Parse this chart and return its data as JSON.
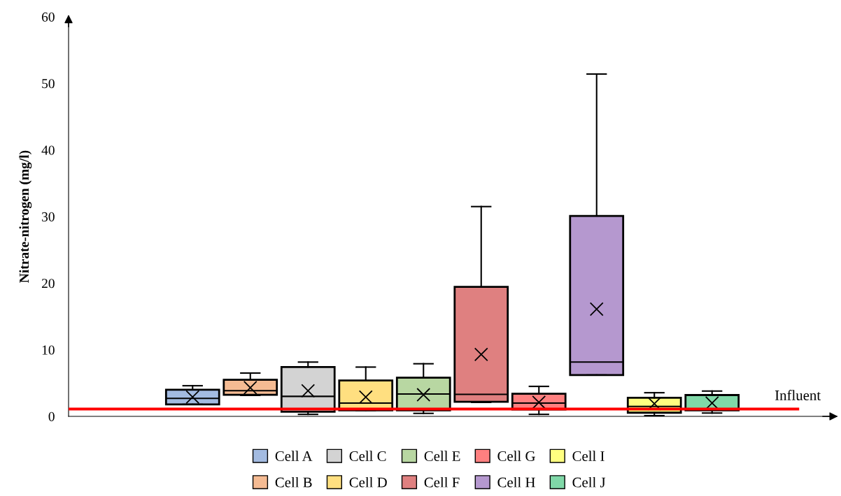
{
  "chart_data": {
    "type": "box",
    "ylabel": "Nitrate-nitrogen (mg/l)",
    "categories": [
      null
    ],
    "ylim": [
      0,
      60
    ],
    "yticks": [
      0,
      10,
      20,
      30,
      40,
      50,
      60
    ],
    "grid": false,
    "legend": "bottom",
    "tick_labels": "y",
    "ref_lines": [
      {
        "axis": "y",
        "value": 1.1,
        "label": "Influent",
        "color": "#ff0000",
        "line_style": "solid"
      }
    ],
    "series": [
      {
        "name": "Cell A",
        "color": "#a3bbe1",
        "boxes": [
          {
            "low": 1.8,
            "q1": 1.8,
            "median": 2.7,
            "q3": 4.0,
            "high": 4.6,
            "mean": 2.9
          }
        ]
      },
      {
        "name": "Cell B",
        "color": "#f5bb93",
        "boxes": [
          {
            "low": 3.15,
            "q1": 3.25,
            "median": 3.85,
            "q3": 5.5,
            "high": 6.5,
            "mean": 4.3
          }
        ]
      },
      {
        "name": "Cell C",
        "color": "#d3d3d3",
        "boxes": [
          {
            "low": 0.3,
            "q1": 0.7,
            "median": 3.0,
            "q3": 7.4,
            "high": 8.15,
            "mean": 3.85
          }
        ]
      },
      {
        "name": "Cell D",
        "color": "#ffdf80",
        "boxes": [
          {
            "low": 0.9,
            "q1": 0.9,
            "median": 2.0,
            "q3": 5.4,
            "high": 7.4,
            "mean": 2.9
          }
        ]
      },
      {
        "name": "Cell E",
        "color": "#b8d7a2",
        "boxes": [
          {
            "low": 0.45,
            "q1": 0.9,
            "median": 3.35,
            "q3": 5.8,
            "high": 7.9,
            "mean": 3.25
          }
        ]
      },
      {
        "name": "Cell F",
        "color": "#df8080",
        "boxes": [
          {
            "low": 2.1,
            "q1": 2.2,
            "median": 3.3,
            "q3": 19.45,
            "high": 31.5,
            "mean": 9.3
          }
        ]
      },
      {
        "name": "Cell G",
        "color": "#ff8080",
        "boxes": [
          {
            "low": 0.3,
            "q1": 1.05,
            "median": 2.0,
            "q3": 3.4,
            "high": 4.5,
            "mean": 2.1
          }
        ]
      },
      {
        "name": "Cell H",
        "color": "#b598cf",
        "boxes": [
          {
            "low": 6.2,
            "q1": 6.2,
            "median": 8.15,
            "q3": 30.1,
            "high": 51.4,
            "mean": 16.1
          }
        ]
      },
      {
        "name": "Cell I",
        "color": "#ffff80",
        "boxes": [
          {
            "low": 0.1,
            "q1": 0.55,
            "median": 1.5,
            "q3": 2.8,
            "high": 3.55,
            "mean": 1.9
          }
        ]
      },
      {
        "name": "Cell J",
        "color": "#80d8a8",
        "boxes": [
          {
            "low": 0.5,
            "q1": 0.9,
            "median": 1.1,
            "q3": 3.2,
            "high": 3.8,
            "mean": 2.0
          }
        ]
      }
    ]
  }
}
